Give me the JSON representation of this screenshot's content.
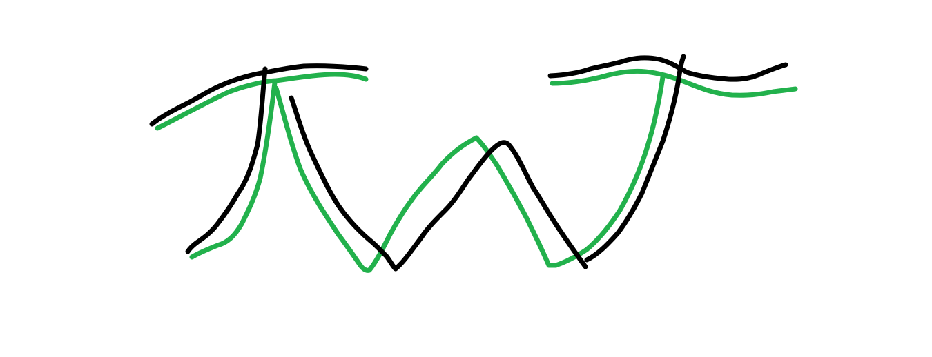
{
  "colors": {
    "background": "#ffffff",
    "green_stroke": "#22b14c",
    "black_stroke": "#000000"
  },
  "strokes": [
    {
      "name": "green-stroke",
      "color": "green_stroke"
    },
    {
      "name": "black-stroke",
      "color": "black_stroke"
    }
  ]
}
